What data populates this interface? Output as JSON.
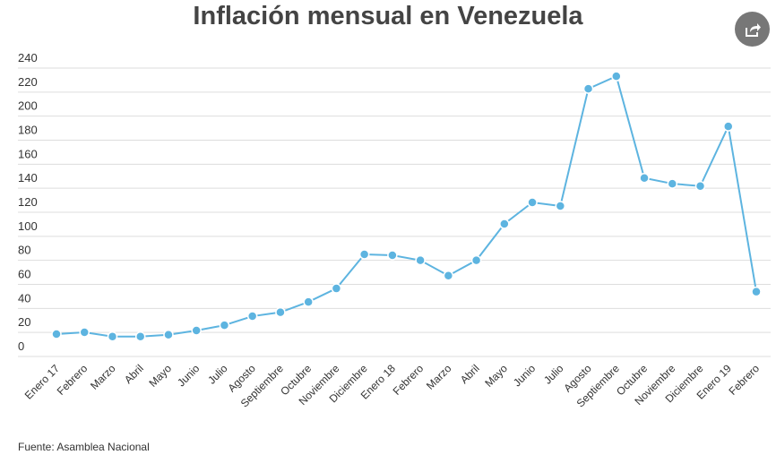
{
  "chart_data": {
    "type": "line",
    "title": "Inflación mensual en Venezuela",
    "source": "Fuente: Asamblea Nacional",
    "categories": [
      "Enero 17",
      "Febrero",
      "Marzo",
      "Abril",
      "Mayo",
      "Junio",
      "Julio",
      "Agosto",
      "Septiembre",
      "Octubre",
      "Noviembre",
      "Diciembre",
      "Enero 18",
      "Febrero",
      "Marzo",
      "Abril",
      "Mayo",
      "Junio",
      "Julio",
      "Agosto",
      "Septiembre",
      "Octubre",
      "Noviembre",
      "Diciembre",
      "Enero 19",
      "Febrero"
    ],
    "values": [
      18.6,
      20.1,
      16.6,
      16.6,
      18.1,
      21.6,
      26,
      33.5,
      36.8,
      45.4,
      56.6,
      85,
      84.2,
      80,
      67.3,
      80,
      110.3,
      128.2,
      125.2,
      222.8,
      233.2,
      148.5,
      143.8,
      141.8,
      191.5,
      53.9
    ],
    "ylim": [
      0,
      240
    ],
    "yticks": [
      0,
      20,
      40,
      60,
      80,
      100,
      120,
      140,
      160,
      180,
      200,
      220,
      240
    ],
    "grid": true,
    "line_color": "#5db4e0",
    "grid_color": "#dddddd"
  },
  "share_icon": "share-icon"
}
